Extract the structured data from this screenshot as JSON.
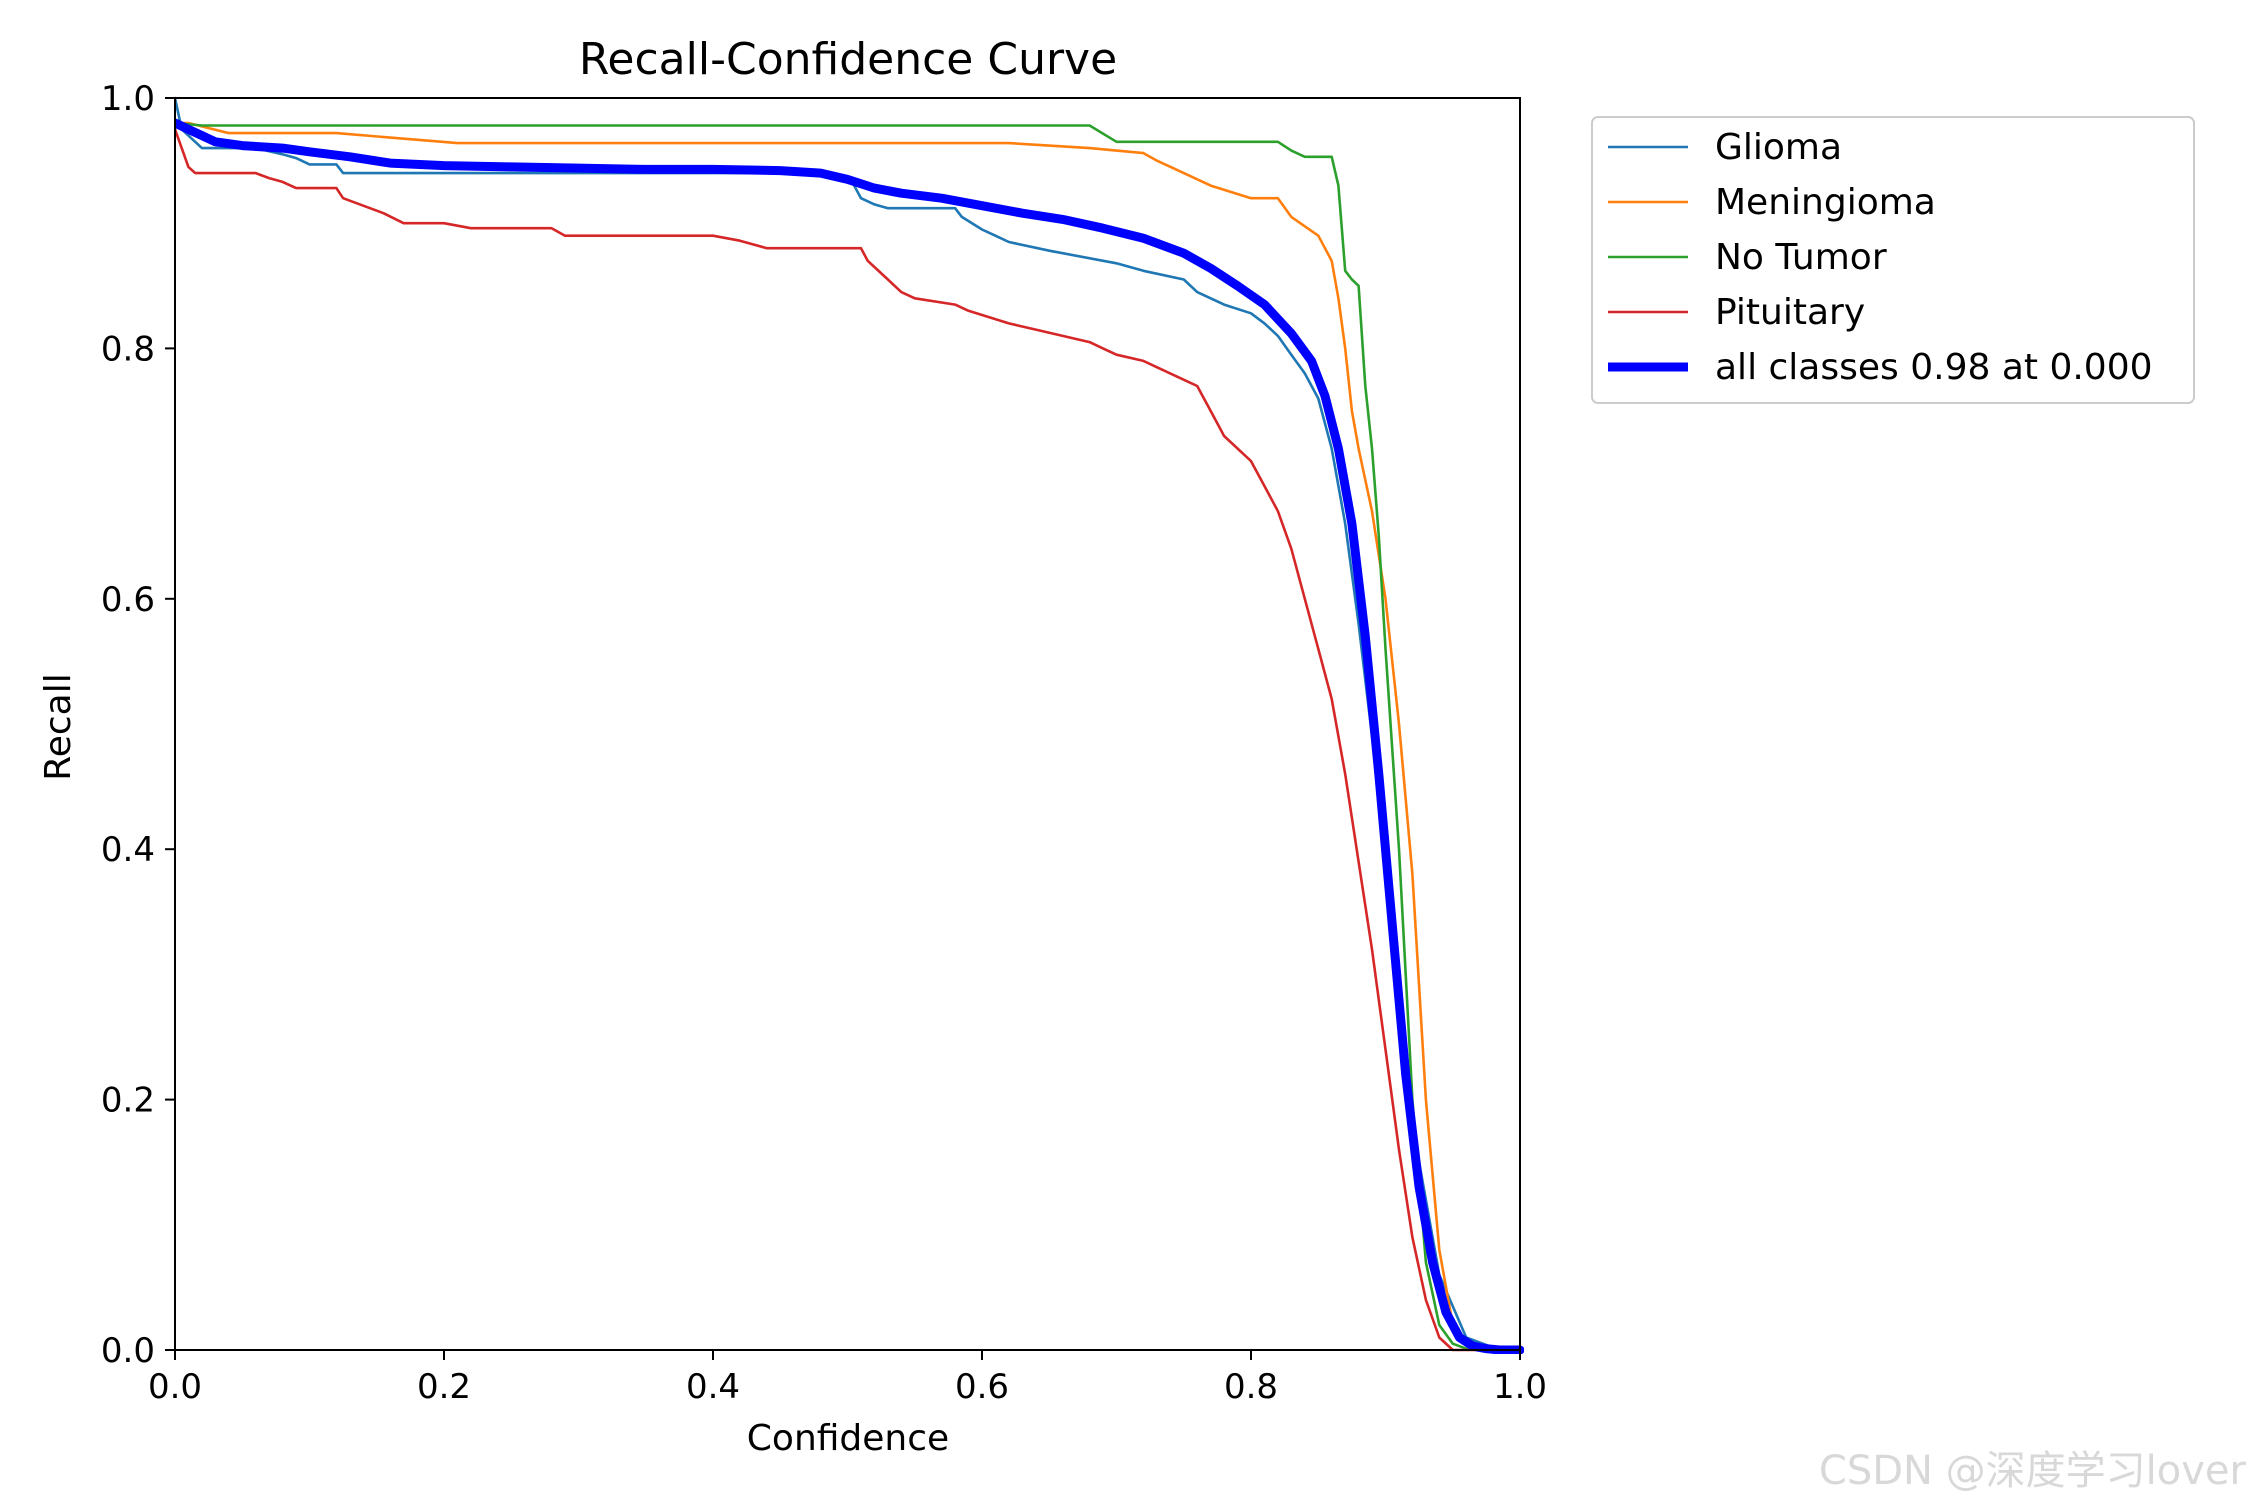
{
  "chart_data": {
    "type": "line",
    "title": "Recall-Confidence Curve",
    "xlabel": "Confidence",
    "ylabel": "Recall",
    "xlim": [
      0,
      1
    ],
    "ylim": [
      0,
      1
    ],
    "xticks": [
      "0.0",
      "0.2",
      "0.4",
      "0.6",
      "0.8",
      "1.0"
    ],
    "yticks": [
      "0.0",
      "0.2",
      "0.4",
      "0.6",
      "0.8",
      "1.0"
    ],
    "grid": false,
    "legend_position": "outside-top-right",
    "series": [
      {
        "name": "Glioma",
        "color": "#1f77b4",
        "x": [
          0.0,
          0.005,
          0.02,
          0.06,
          0.08,
          0.09,
          0.1,
          0.12,
          0.125,
          0.2,
          0.3,
          0.4,
          0.48,
          0.5,
          0.505,
          0.51,
          0.52,
          0.53,
          0.55,
          0.58,
          0.585,
          0.6,
          0.61,
          0.62,
          0.65,
          0.7,
          0.72,
          0.75,
          0.76,
          0.78,
          0.8,
          0.81,
          0.82,
          0.83,
          0.84,
          0.85,
          0.86,
          0.87,
          0.88,
          0.9,
          0.92,
          0.94,
          0.96,
          0.98,
          1.0
        ],
        "y": [
          1.0,
          0.975,
          0.96,
          0.96,
          0.955,
          0.952,
          0.947,
          0.947,
          0.94,
          0.94,
          0.94,
          0.94,
          0.94,
          0.935,
          0.93,
          0.92,
          0.915,
          0.912,
          0.912,
          0.912,
          0.905,
          0.895,
          0.89,
          0.885,
          0.878,
          0.868,
          0.862,
          0.855,
          0.845,
          0.835,
          0.828,
          0.82,
          0.81,
          0.795,
          0.78,
          0.76,
          0.72,
          0.66,
          0.58,
          0.4,
          0.18,
          0.06,
          0.01,
          0.002,
          0.0
        ]
      },
      {
        "name": "Meningioma",
        "color": "#ff7f0e",
        "x": [
          0.0,
          0.01,
          0.04,
          0.12,
          0.21,
          0.3,
          0.62,
          0.68,
          0.72,
          0.73,
          0.75,
          0.77,
          0.8,
          0.82,
          0.83,
          0.85,
          0.86,
          0.865,
          0.87,
          0.875,
          0.88,
          0.89,
          0.9,
          0.91,
          0.92,
          0.93,
          0.94,
          0.95,
          0.96,
          0.98,
          1.0
        ],
        "y": [
          0.98,
          0.98,
          0.972,
          0.972,
          0.964,
          0.964,
          0.964,
          0.96,
          0.956,
          0.95,
          0.94,
          0.93,
          0.92,
          0.92,
          0.905,
          0.89,
          0.87,
          0.84,
          0.8,
          0.75,
          0.72,
          0.67,
          0.6,
          0.5,
          0.38,
          0.2,
          0.08,
          0.02,
          0.004,
          0.001,
          0.0
        ]
      },
      {
        "name": "No Tumor",
        "color": "#2ca02c",
        "x": [
          0.0,
          0.02,
          0.1,
          0.4,
          0.68,
          0.7,
          0.8,
          0.82,
          0.83,
          0.84,
          0.86,
          0.865,
          0.87,
          0.875,
          0.88,
          0.885,
          0.89,
          0.895,
          0.9,
          0.91,
          0.92,
          0.93,
          0.94,
          0.95,
          0.96,
          0.98,
          1.0
        ],
        "y": [
          0.98,
          0.978,
          0.978,
          0.978,
          0.978,
          0.965,
          0.965,
          0.965,
          0.958,
          0.953,
          0.953,
          0.93,
          0.862,
          0.855,
          0.85,
          0.77,
          0.72,
          0.65,
          0.56,
          0.4,
          0.2,
          0.07,
          0.02,
          0.005,
          0.001,
          0.0,
          0.0
        ]
      },
      {
        "name": "Pituitary",
        "color": "#d62728",
        "x": [
          0.0,
          0.005,
          0.01,
          0.015,
          0.06,
          0.07,
          0.08,
          0.09,
          0.12,
          0.125,
          0.14,
          0.155,
          0.17,
          0.2,
          0.22,
          0.24,
          0.28,
          0.29,
          0.4,
          0.42,
          0.44,
          0.45,
          0.51,
          0.515,
          0.52,
          0.53,
          0.54,
          0.55,
          0.58,
          0.59,
          0.62,
          0.64,
          0.66,
          0.68,
          0.69,
          0.7,
          0.72,
          0.73,
          0.76,
          0.77,
          0.78,
          0.8,
          0.81,
          0.82,
          0.83,
          0.84,
          0.85,
          0.86,
          0.87,
          0.88,
          0.89,
          0.9,
          0.91,
          0.92,
          0.93,
          0.94,
          0.95,
          0.96,
          1.0
        ],
        "y": [
          0.975,
          0.96,
          0.945,
          0.94,
          0.94,
          0.936,
          0.933,
          0.928,
          0.928,
          0.92,
          0.914,
          0.908,
          0.9,
          0.9,
          0.896,
          0.896,
          0.896,
          0.89,
          0.89,
          0.886,
          0.88,
          0.88,
          0.88,
          0.87,
          0.865,
          0.855,
          0.845,
          0.84,
          0.835,
          0.83,
          0.82,
          0.815,
          0.81,
          0.805,
          0.8,
          0.795,
          0.79,
          0.785,
          0.77,
          0.75,
          0.73,
          0.71,
          0.69,
          0.67,
          0.64,
          0.6,
          0.56,
          0.52,
          0.46,
          0.39,
          0.32,
          0.24,
          0.16,
          0.09,
          0.04,
          0.01,
          0.0,
          0.0,
          0.0
        ]
      },
      {
        "name": "all classes 0.98 at 0.000",
        "color": "#0000ff",
        "thick": true,
        "x": [
          0.0,
          0.01,
          0.03,
          0.05,
          0.08,
          0.1,
          0.13,
          0.16,
          0.2,
          0.25,
          0.3,
          0.35,
          0.4,
          0.45,
          0.48,
          0.5,
          0.52,
          0.54,
          0.57,
          0.6,
          0.63,
          0.66,
          0.69,
          0.72,
          0.75,
          0.77,
          0.79,
          0.81,
          0.83,
          0.845,
          0.855,
          0.865,
          0.875,
          0.885,
          0.895,
          0.905,
          0.915,
          0.925,
          0.935,
          0.945,
          0.955,
          0.965,
          0.975,
          0.985,
          1.0
        ],
        "y": [
          0.98,
          0.975,
          0.965,
          0.962,
          0.96,
          0.957,
          0.953,
          0.948,
          0.946,
          0.945,
          0.944,
          0.943,
          0.943,
          0.942,
          0.94,
          0.935,
          0.928,
          0.924,
          0.92,
          0.914,
          0.908,
          0.903,
          0.896,
          0.888,
          0.876,
          0.864,
          0.85,
          0.835,
          0.812,
          0.79,
          0.762,
          0.72,
          0.66,
          0.57,
          0.46,
          0.34,
          0.22,
          0.13,
          0.07,
          0.03,
          0.01,
          0.003,
          0.001,
          0.0,
          0.0
        ]
      }
    ]
  },
  "watermark": "CSDN @深度学习lover"
}
